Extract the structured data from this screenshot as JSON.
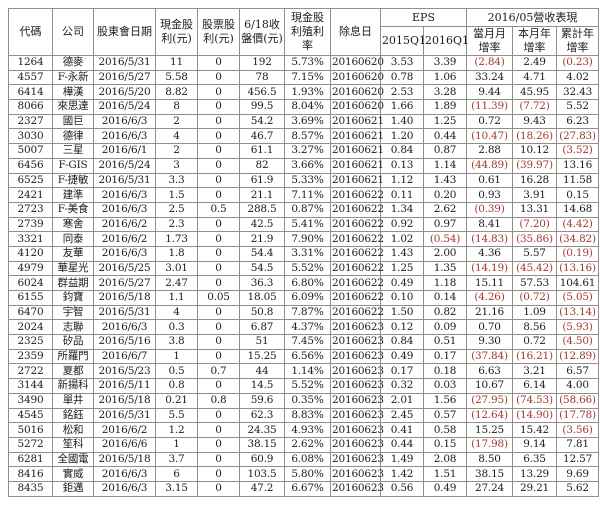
{
  "table": {
    "headers": {
      "code": "代碼",
      "company": "公司",
      "meeting_date": "股東會日期",
      "cash_dividend": "現金股利(元)",
      "stock_dividend": "股票股利(元)",
      "close_price": "6/18收盤價(元)",
      "cash_yield": "現金股利殖利率",
      "ex_dividend_date": "除息日",
      "eps_group": "EPS",
      "eps_2015q1": "2015Q1",
      "eps_2016q1": "2016Q1",
      "revenue_group": "2016/05營收表現",
      "mom_growth": "當月月增率",
      "yoy_month_growth": "本月年增率",
      "yoy_cum_growth": "累計年增率"
    },
    "column_keys": [
      "code",
      "company",
      "meeting_date",
      "cash_dividend",
      "stock_dividend",
      "close_price",
      "cash_yield",
      "ex_dividend_date",
      "eps_2015q1",
      "eps_2016q1",
      "mom_growth",
      "yoy_month_growth",
      "yoy_cum_growth"
    ],
    "rows": [
      [
        "1264",
        "德麥",
        "2016/5/31",
        "11",
        "0",
        "192",
        "5.73%",
        "20160620",
        "3.53",
        "3.39",
        "(2.84)",
        "2.49",
        "(0.23)"
      ],
      [
        "4557",
        "F-永新",
        "2016/5/27",
        "5.58",
        "0",
        "78",
        "7.15%",
        "20160620",
        "0.78",
        "1.06",
        "33.24",
        "4.71",
        "4.02"
      ],
      [
        "6414",
        "樺漢",
        "2016/5/20",
        "8.82",
        "0",
        "456.5",
        "1.93%",
        "20160620",
        "2.53",
        "3.28",
        "9.44",
        "45.95",
        "32.43"
      ],
      [
        "8066",
        "來思達",
        "2016/5/24",
        "8",
        "0",
        "99.5",
        "8.04%",
        "20160620",
        "1.66",
        "1.89",
        "(11.39)",
        "(7.72)",
        "5.52"
      ],
      [
        "2327",
        "國巨",
        "2016/6/3",
        "2",
        "0",
        "54.2",
        "3.69%",
        "20160621",
        "1.40",
        "1.25",
        "0.72",
        "9.43",
        "6.23"
      ],
      [
        "3030",
        "德律",
        "2016/6/3",
        "4",
        "0",
        "46.7",
        "8.57%",
        "20160621",
        "1.20",
        "0.44",
        "(10.47)",
        "(18.26)",
        "(27.83)"
      ],
      [
        "5007",
        "三星",
        "2016/6/1",
        "2",
        "0",
        "61.1",
        "3.27%",
        "20160621",
        "0.84",
        "0.87",
        "2.88",
        "10.12",
        "(3.52)"
      ],
      [
        "6456",
        "F-GIS",
        "2016/5/24",
        "3",
        "0",
        "82",
        "3.66%",
        "20160621",
        "0.13",
        "1.14",
        "(44.89)",
        "(39.97)",
        "13.16"
      ],
      [
        "6525",
        "F-捷敏",
        "2016/5/31",
        "3.3",
        "0",
        "61.9",
        "5.33%",
        "20160621",
        "1.12",
        "1.43",
        "0.61",
        "16.28",
        "11.58"
      ],
      [
        "2421",
        "建準",
        "2016/6/3",
        "1.5",
        "0",
        "21.1",
        "7.11%",
        "20160622",
        "0.11",
        "0.20",
        "0.93",
        "3.91",
        "0.15"
      ],
      [
        "2723",
        "F-美食",
        "2016/6/3",
        "2.5",
        "0.5",
        "288.5",
        "0.87%",
        "20160622",
        "1.34",
        "2.62",
        "(0.39)",
        "13.31",
        "14.68"
      ],
      [
        "2739",
        "寒舍",
        "2016/6/2",
        "2.3",
        "0",
        "42.5",
        "5.41%",
        "20160622",
        "0.92",
        "0.97",
        "8.41",
        "(7.20)",
        "(4.42)"
      ],
      [
        "3321",
        "同泰",
        "2016/6/2",
        "1.73",
        "0",
        "21.9",
        "7.90%",
        "20160622",
        "1.02",
        "(0.54)",
        "(14.83)",
        "(35.86)",
        "(34.82)"
      ],
      [
        "4120",
        "友華",
        "2016/6/3",
        "1.8",
        "0",
        "54.4",
        "3.31%",
        "20160622",
        "1.43",
        "2.00",
        "4.36",
        "5.57",
        "(0.19)"
      ],
      [
        "4979",
        "華星光",
        "2016/5/25",
        "3.01",
        "0",
        "54.5",
        "5.52%",
        "20160622",
        "1.25",
        "1.35",
        "(14.19)",
        "(45.42)",
        "(13.16)"
      ],
      [
        "6024",
        "群益期",
        "2016/5/27",
        "2.47",
        "0",
        "36.3",
        "6.80%",
        "20160622",
        "0.49",
        "1.18",
        "15.11",
        "57.53",
        "104.61"
      ],
      [
        "6155",
        "鈞寶",
        "2016/5/18",
        "1.1",
        "0.05",
        "18.05",
        "6.09%",
        "20160622",
        "0.10",
        "0.14",
        "(4.26)",
        "(0.72)",
        "(5.05)"
      ],
      [
        "6470",
        "宇智",
        "2016/5/31",
        "4",
        "0",
        "50.8",
        "7.87%",
        "20160622",
        "1.50",
        "0.82",
        "21.16",
        "1.09",
        "(13.14)"
      ],
      [
        "2024",
        "志聯",
        "2016/6/3",
        "0.3",
        "0",
        "6.87",
        "4.37%",
        "20160623",
        "0.12",
        "0.09",
        "0.70",
        "8.56",
        "(5.93)"
      ],
      [
        "2325",
        "矽品",
        "2016/5/16",
        "3.8",
        "0",
        "51",
        "7.45%",
        "20160623",
        "0.84",
        "0.51",
        "9.30",
        "0.72",
        "(4.50)"
      ],
      [
        "2359",
        "所羅門",
        "2016/6/7",
        "1",
        "0",
        "15.25",
        "6.56%",
        "20160623",
        "0.49",
        "0.17",
        "(37.84)",
        "(16.21)",
        "(12.89)"
      ],
      [
        "2722",
        "夏都",
        "2016/5/23",
        "0.5",
        "0.7",
        "44",
        "1.14%",
        "20160623",
        "0.17",
        "0.18",
        "6.63",
        "3.21",
        "6.57"
      ],
      [
        "3144",
        "新揚科",
        "2016/5/11",
        "0.8",
        "0",
        "14.5",
        "5.52%",
        "20160623",
        "0.32",
        "0.03",
        "10.67",
        "6.14",
        "4.00"
      ],
      [
        "3490",
        "單井",
        "2016/5/18",
        "0.21",
        "0.8",
        "59.6",
        "0.35%",
        "20160623",
        "2.01",
        "1.56",
        "(27.95)",
        "(74.53)",
        "(58.66)"
      ],
      [
        "4545",
        "銘鈺",
        "2016/5/31",
        "5.5",
        "0",
        "62.3",
        "8.83%",
        "20160623",
        "2.45",
        "0.57",
        "(12.64)",
        "(14.90)",
        "(17.78)"
      ],
      [
        "5016",
        "松和",
        "2016/6/2",
        "1.2",
        "0",
        "24.35",
        "4.93%",
        "20160623",
        "0.41",
        "0.58",
        "15.25",
        "15.42",
        "(3.56)"
      ],
      [
        "5272",
        "笙科",
        "2016/6/6",
        "1",
        "0",
        "38.15",
        "2.62%",
        "20160623",
        "0.44",
        "0.15",
        "(17.98)",
        "9.14",
        "7.81"
      ],
      [
        "6281",
        "全國電",
        "2016/5/18",
        "3.7",
        "0",
        "60.9",
        "6.08%",
        "20160623",
        "1.49",
        "2.08",
        "8.50",
        "6.35",
        "12.57"
      ],
      [
        "8416",
        "實威",
        "2016/6/3",
        "6",
        "0",
        "103.5",
        "5.80%",
        "20160623",
        "1.42",
        "1.51",
        "38.15",
        "13.29",
        "9.69"
      ],
      [
        "8435",
        "鉅邁",
        "2016/6/3",
        "3.15",
        "0",
        "47.2",
        "6.67%",
        "20160623",
        "0.56",
        "0.49",
        "27.24",
        "29.21",
        "5.62"
      ]
    ]
  },
  "colors": {
    "text": "#1c1c1c",
    "negative": "#a03a30",
    "border": "#8f8f8f"
  }
}
